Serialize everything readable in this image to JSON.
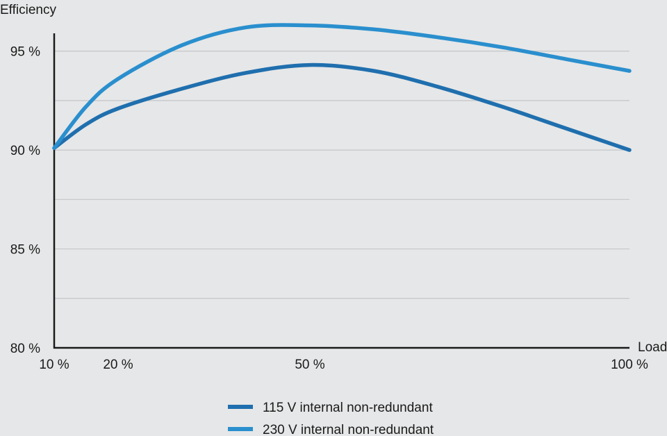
{
  "chart_data": {
    "type": "line",
    "title": "",
    "ylabel": "Efficiency",
    "xlabel": "Load",
    "ylim": [
      80,
      95.9
    ],
    "y_ticks": [
      {
        "value": 80,
        "label": "80 %"
      },
      {
        "value": 85,
        "label": "85 %"
      },
      {
        "value": 90,
        "label": "90 %"
      },
      {
        "value": 95,
        "label": "95 %"
      }
    ],
    "gridlines": [
      82.5,
      85,
      87.5,
      90,
      92.5,
      95
    ],
    "x_ticks": [
      {
        "value": 10,
        "label": "10 %"
      },
      {
        "value": 20,
        "label": "20 %"
      },
      {
        "value": 50,
        "label": "50 %"
      },
      {
        "value": 100,
        "label": "100 %"
      }
    ],
    "grid": true,
    "legend_position": "bottom",
    "series": [
      {
        "name": "115 V internal non-redundant",
        "color": "#1f6fae",
        "points": [
          [
            10,
            90.1
          ],
          [
            15,
            91.3
          ],
          [
            20,
            92.1
          ],
          [
            30,
            93.1
          ],
          [
            40,
            93.9
          ],
          [
            50,
            94.3
          ],
          [
            60,
            94.0
          ],
          [
            70,
            93.2
          ],
          [
            80,
            92.2
          ],
          [
            90,
            91.1
          ],
          [
            100,
            90.0
          ]
        ]
      },
      {
        "name": "230 V internal non-redundant",
        "color": "#2a8fce",
        "points": [
          [
            10,
            90.1
          ],
          [
            15,
            92.2
          ],
          [
            20,
            93.6
          ],
          [
            30,
            95.3
          ],
          [
            40,
            96.2
          ],
          [
            50,
            96.3
          ],
          [
            60,
            96.1
          ],
          [
            70,
            95.7
          ],
          [
            80,
            95.2
          ],
          [
            90,
            94.6
          ],
          [
            100,
            94.0
          ]
        ]
      }
    ]
  }
}
